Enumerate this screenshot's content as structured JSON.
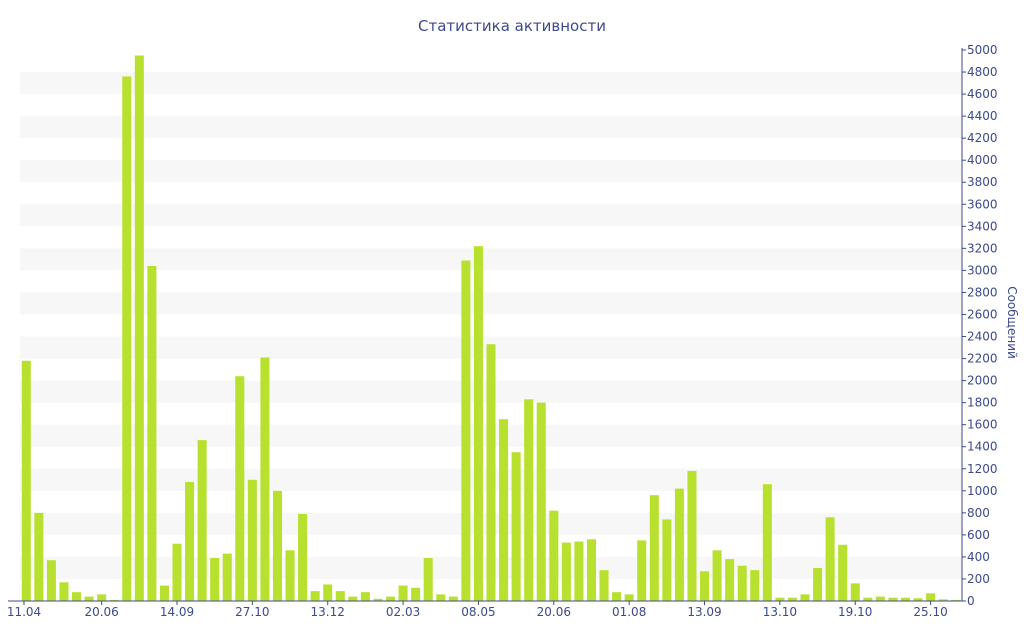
{
  "chart_data": {
    "type": "bar",
    "title": "Статистика активности",
    "ylabel": "Сообщений",
    "xlabel": "",
    "ylim": [
      0,
      5000
    ],
    "y_ticks": [
      0,
      200,
      400,
      600,
      800,
      1000,
      1200,
      1400,
      1600,
      1800,
      2000,
      2200,
      2400,
      2600,
      2800,
      3000,
      3200,
      3400,
      3600,
      3800,
      4000,
      4200,
      4400,
      4600,
      4800,
      5000
    ],
    "y_axis_side": "right",
    "x_tick_labels": [
      {
        "index": 0,
        "label": "11.04"
      },
      {
        "index": 6,
        "label": "20.06"
      },
      {
        "index": 12,
        "label": "14.09"
      },
      {
        "index": 18,
        "label": "27.10"
      },
      {
        "index": 24,
        "label": "13.12"
      },
      {
        "index": 30,
        "label": "02.03"
      },
      {
        "index": 36,
        "label": "08.05"
      },
      {
        "index": 42,
        "label": "20.06"
      },
      {
        "index": 48,
        "label": "01.08"
      },
      {
        "index": 54,
        "label": "13.09"
      },
      {
        "index": 60,
        "label": "13.10"
      },
      {
        "index": 66,
        "label": "19.10"
      },
      {
        "index": 72,
        "label": "25.10"
      }
    ],
    "values": [
      2180,
      800,
      370,
      170,
      80,
      40,
      60,
      10,
      4760,
      4950,
      3040,
      140,
      520,
      1080,
      1460,
      390,
      430,
      2040,
      1100,
      2210,
      1000,
      460,
      790,
      90,
      150,
      90,
      40,
      80,
      20,
      40,
      140,
      120,
      390,
      60,
      40,
      3090,
      3220,
      2330,
      1650,
      1350,
      1830,
      1800,
      820,
      530,
      540,
      560,
      280,
      80,
      60,
      550,
      960,
      740,
      1020,
      1180,
      270,
      460,
      380,
      320,
      280,
      1060,
      30,
      30,
      60,
      300,
      760,
      510,
      160,
      30,
      40,
      30,
      30,
      25,
      70,
      15,
      10
    ],
    "grid": true,
    "legend": "none",
    "colors": {
      "bar": "#b8e02e",
      "band": "#f7f7f7",
      "axis": "#3c4a8c",
      "text": "#3c4a8c"
    }
  }
}
